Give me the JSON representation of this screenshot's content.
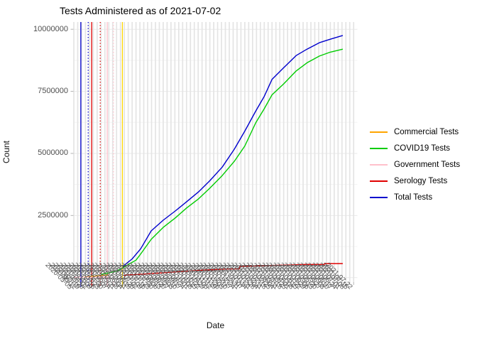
{
  "title": "Tests Administered as of 2021-07-02",
  "axes": {
    "x_label": "Date",
    "y_label": "Count",
    "y_tick_labels": [
      "0",
      "2500000",
      "5000000",
      "7500000",
      "10000000"
    ]
  },
  "legend": {
    "items": [
      {
        "label": "Commercial Tests",
        "color": "#FFA500"
      },
      {
        "label": "COVID19 Tests",
        "color": "#00CC00"
      },
      {
        "label": "Government Tests",
        "color": "#FFC0CB"
      },
      {
        "label": "Serology Tests",
        "color": "#E00000"
      },
      {
        "label": "Total Tests",
        "color": "#0000CD"
      }
    ]
  },
  "chart_data": {
    "type": "line",
    "title": "Tests Administered as of 2021-07-02",
    "xlabel": "Date",
    "ylabel": "Count",
    "ylim": [
      0,
      10000000
    ],
    "y_ticks": [
      0,
      2500000,
      5000000,
      7500000,
      10000000
    ],
    "y_minor_ticks": [
      1250000,
      3750000,
      6250000,
      8750000
    ],
    "grid": "on",
    "legend_position": "right",
    "x_tick_dates": [
      "2020-03-05",
      "2020-03-12",
      "2020-03-19",
      "2020-03-26",
      "2020-04-02",
      "2020-04-09",
      "2020-04-16",
      "2020-04-23",
      "2020-04-30",
      "2020-05-07",
      "2020-05-14",
      "2020-05-21",
      "2020-05-28",
      "2020-06-04",
      "2020-06-11",
      "2020-06-18",
      "2020-06-25",
      "2020-07-02",
      "2020-07-09",
      "2020-07-16",
      "2020-07-23",
      "2020-07-30",
      "2020-08-06",
      "2020-08-13",
      "2020-08-20",
      "2020-08-27",
      "2020-09-03",
      "2020-09-10",
      "2020-09-17",
      "2020-09-24",
      "2020-10-01",
      "2020-10-08",
      "2020-10-15",
      "2020-10-22",
      "2020-10-29",
      "2020-11-05",
      "2020-11-12",
      "2020-11-19",
      "2020-11-26",
      "2020-12-03",
      "2020-12-10",
      "2020-12-17",
      "2020-12-24",
      "2020-12-31",
      "2021-01-07",
      "2021-01-14",
      "2021-01-21",
      "2021-01-28",
      "2021-02-04",
      "2021-02-11",
      "2021-02-18",
      "2021-02-25",
      "2021-03-04",
      "2021-03-11",
      "2021-03-18",
      "2021-03-25",
      "2021-04-01",
      "2021-04-08",
      "2021-04-15",
      "2021-04-22",
      "2021-04-29",
      "2021-05-06",
      "2021-05-13",
      "2021-05-20",
      "2021-05-27",
      "2021-06-03",
      "2021-06-10",
      "2021-06-17",
      "2021-06-24",
      "2021-07-01",
      "2021-07-08",
      "2021-07-15",
      "2021-07-22"
    ],
    "series": [
      {
        "name": "Commercial Tests",
        "color": "#FFA500",
        "points": [
          [
            2.6,
            20000
          ],
          [
            4,
            40000
          ],
          [
            5.5,
            60000
          ],
          [
            7,
            85000
          ],
          [
            9,
            110000
          ]
        ]
      },
      {
        "name": "COVID19 Tests",
        "color": "#00CC00",
        "points": [
          [
            7,
            130000
          ],
          [
            9,
            190000
          ],
          [
            11,
            260000
          ],
          [
            12.5,
            380000
          ],
          [
            14,
            520000
          ],
          [
            16,
            700000
          ],
          [
            17.2,
            950000
          ],
          [
            19.9,
            1540000
          ],
          [
            23,
            2020000
          ],
          [
            26.1,
            2400000
          ],
          [
            29,
            2800000
          ],
          [
            32.1,
            3170000
          ],
          [
            35,
            3600000
          ],
          [
            38.2,
            4110000
          ],
          [
            41.3,
            4680000
          ],
          [
            44,
            5300000
          ],
          [
            46.8,
            6230000
          ],
          [
            49,
            6800000
          ],
          [
            51,
            7360000
          ],
          [
            54,
            7800000
          ],
          [
            57.2,
            8320000
          ],
          [
            60,
            8650000
          ],
          [
            63.2,
            8920000
          ],
          [
            66,
            9080000
          ],
          [
            69.2,
            9200000
          ]
        ]
      },
      {
        "name": "Government Tests",
        "color": "#FFC0CB",
        "points": [
          [
            0,
            14000
          ],
          [
            3,
            15000
          ],
          [
            6,
            17000
          ],
          [
            9.4,
            20000
          ]
        ]
      },
      {
        "name": "Serology Tests",
        "color": "#E00000",
        "points": [
          [
            12.9,
            86000
          ],
          [
            14,
            110000
          ],
          [
            17.5,
            134000
          ],
          [
            20,
            160000
          ],
          [
            24.8,
            211000
          ],
          [
            28,
            250000
          ],
          [
            32.1,
            286000
          ],
          [
            36,
            320000
          ],
          [
            39.5,
            343000
          ],
          [
            42.5,
            345000
          ],
          [
            42.8,
            449000
          ],
          [
            47,
            470000
          ],
          [
            52,
            495000
          ],
          [
            56,
            510000
          ],
          [
            59.5,
            526000
          ],
          [
            64.4,
            526000
          ],
          [
            64.6,
            564000
          ],
          [
            69.2,
            564000
          ]
        ]
      },
      {
        "name": "Total Tests",
        "color": "#0000CD",
        "points": [
          [
            12.6,
            440000
          ],
          [
            13.5,
            560000
          ],
          [
            15,
            750000
          ],
          [
            17.2,
            1160000
          ],
          [
            19.9,
            1880000
          ],
          [
            23,
            2310000
          ],
          [
            26.1,
            2680000
          ],
          [
            29,
            3050000
          ],
          [
            32.1,
            3450000
          ],
          [
            35,
            3900000
          ],
          [
            38.2,
            4450000
          ],
          [
            41.3,
            5170000
          ],
          [
            44,
            5900000
          ],
          [
            46.8,
            6700000
          ],
          [
            49,
            7300000
          ],
          [
            51,
            7980000
          ],
          [
            54,
            8450000
          ],
          [
            57.2,
            8940000
          ],
          [
            60,
            9200000
          ],
          [
            63.2,
            9460000
          ],
          [
            66,
            9600000
          ],
          [
            69.2,
            9750000
          ]
        ]
      }
    ],
    "vlines": [
      {
        "color": "#0000CD",
        "dash": "solid",
        "x": 1.8
      },
      {
        "color": "#0000CD",
        "dash": "dotted",
        "x": 3.7
      },
      {
        "color": "#E00000",
        "dash": "solid",
        "x": 4.6
      },
      {
        "color": "#E00000",
        "dash": "dotted",
        "x": 6.8
      },
      {
        "color": "#FFC0CB",
        "dash": "solid",
        "x": 8.6
      },
      {
        "color": "#FFC0CB",
        "dash": "dotted",
        "x": 10.2
      },
      {
        "color": "#FFD700",
        "dash": "solid",
        "x": 12.5
      }
    ]
  }
}
